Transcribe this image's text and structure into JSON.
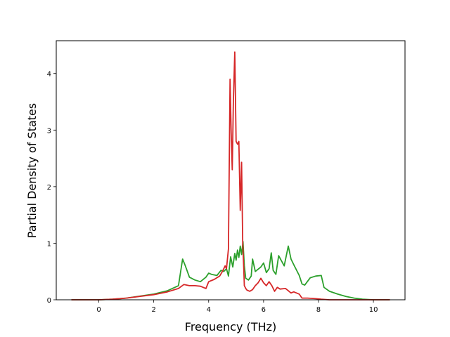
{
  "chart_data": {
    "type": "line",
    "title": "",
    "xlabel": "Frequency (THz)",
    "ylabel": "Partial Density of States",
    "xlim": [
      -1.55,
      11.15
    ],
    "ylim": [
      0,
      4.58
    ],
    "x_ticks": [
      "0",
      "2",
      "4",
      "6",
      "8",
      "10"
    ],
    "x_tick_values": [
      0,
      2,
      4,
      6,
      8,
      10
    ],
    "y_ticks": [
      "0",
      "1",
      "2",
      "3",
      "4"
    ],
    "y_tick_values": [
      0,
      1,
      2,
      3,
      4
    ],
    "grid": false,
    "series": [
      {
        "color": "#2ca02c",
        "x": [
          -1.0,
          0.0,
          0.5,
          1.0,
          2.0,
          2.5,
          2.9,
          3.05,
          3.15,
          3.3,
          3.5,
          3.7,
          3.9,
          4.0,
          4.1,
          4.3,
          4.45,
          4.55,
          4.65,
          4.72,
          4.8,
          4.88,
          4.95,
          5.0,
          5.05,
          5.1,
          5.15,
          5.2,
          5.25,
          5.3,
          5.35,
          5.45,
          5.55,
          5.6,
          5.7,
          5.9,
          6.0,
          6.1,
          6.2,
          6.28,
          6.35,
          6.45,
          6.55,
          6.75,
          6.9,
          7.0,
          7.1,
          7.3,
          7.4,
          7.5,
          7.7,
          7.9,
          8.1,
          8.2,
          8.4,
          8.7,
          9.0,
          9.3,
          9.6,
          10.0,
          10.6
        ],
        "values": [
          0,
          0,
          0.01,
          0.03,
          0.1,
          0.16,
          0.25,
          0.72,
          0.6,
          0.4,
          0.35,
          0.32,
          0.4,
          0.47,
          0.45,
          0.43,
          0.52,
          0.5,
          0.55,
          0.42,
          0.76,
          0.58,
          0.82,
          0.7,
          0.88,
          0.75,
          0.95,
          0.8,
          1.03,
          0.6,
          0.38,
          0.35,
          0.42,
          0.72,
          0.5,
          0.58,
          0.65,
          0.48,
          0.55,
          0.83,
          0.52,
          0.45,
          0.78,
          0.6,
          0.95,
          0.72,
          0.62,
          0.43,
          0.28,
          0.26,
          0.39,
          0.42,
          0.43,
          0.22,
          0.15,
          0.1,
          0.06,
          0.03,
          0.01,
          0.0,
          0.0
        ]
      },
      {
        "color": "#d62728",
        "x": [
          -1.0,
          0.0,
          0.5,
          1.0,
          2.0,
          2.5,
          2.9,
          3.1,
          3.3,
          3.5,
          3.7,
          3.9,
          4.0,
          4.2,
          4.4,
          4.5,
          4.6,
          4.65,
          4.72,
          4.78,
          4.82,
          4.86,
          4.9,
          4.95,
          5.0,
          5.05,
          5.1,
          5.15,
          5.2,
          5.24,
          5.28,
          5.3,
          5.35,
          5.4,
          5.5,
          5.6,
          5.7,
          5.8,
          5.9,
          6.0,
          6.1,
          6.2,
          6.3,
          6.4,
          6.5,
          6.6,
          6.8,
          6.9,
          7.0,
          7.1,
          7.3,
          7.4,
          7.6,
          7.9,
          8.1,
          8.4,
          10.6
        ],
        "values": [
          0,
          0,
          0.01,
          0.03,
          0.09,
          0.14,
          0.2,
          0.27,
          0.25,
          0.25,
          0.24,
          0.2,
          0.32,
          0.36,
          0.42,
          0.5,
          0.6,
          0.55,
          0.9,
          3.9,
          2.95,
          2.3,
          3.5,
          4.38,
          2.8,
          2.75,
          2.8,
          1.58,
          2.43,
          1.0,
          0.55,
          0.25,
          0.2,
          0.17,
          0.15,
          0.18,
          0.25,
          0.3,
          0.38,
          0.3,
          0.25,
          0.32,
          0.25,
          0.15,
          0.22,
          0.19,
          0.2,
          0.16,
          0.12,
          0.14,
          0.1,
          0.03,
          0.03,
          0.02,
          0.01,
          0.0,
          0.0
        ]
      }
    ]
  }
}
